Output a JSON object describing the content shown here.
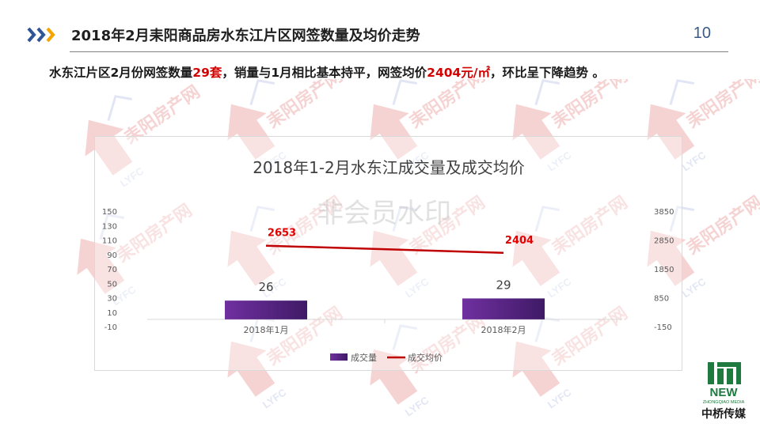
{
  "header": {
    "title": "2018年2月耒阳商品房水东江片区网签数量及均价走势",
    "page_number": "10"
  },
  "summary": {
    "part1": "水东江片区2月份网签数量",
    "count": "29套",
    "part2": "，销量与1月相比基本持平，网签均价",
    "price": "2404元/㎡",
    "part3": "，环比呈下降趋势 。"
  },
  "watermark": {
    "site": "耒阳房产网",
    "site_code": "LYFC",
    "center_text": "非会员水印"
  },
  "brand": {
    "mark": "NEW",
    "subtitle": "ZHONGQIAO MEDIA",
    "name": "中桥传媒"
  },
  "colors": {
    "accent_blue": "#2f5597",
    "accent_orange": "#f4a300",
    "bar": "#7030a0",
    "bar_dark": "#3f1a66",
    "line": "#c00000",
    "label_red": "#e00000"
  },
  "chart_data": {
    "type": "bar+line",
    "title": "2018年1-2月水东江成交量及成交均价",
    "categories": [
      "2018年1月",
      "2018年2月"
    ],
    "series": [
      {
        "name": "成交量",
        "type": "bar",
        "axis": "left",
        "values": [
          26,
          29
        ]
      },
      {
        "name": "成交均价",
        "type": "line",
        "axis": "right",
        "values": [
          2653,
          2404
        ]
      }
    ],
    "y_left": {
      "min": -10,
      "max": 150,
      "ticks": [
        -10,
        10,
        30,
        50,
        70,
        90,
        110,
        130,
        150
      ]
    },
    "y_right": {
      "min": -150,
      "max": 3850,
      "ticks": [
        -150,
        850,
        1850,
        2850,
        3850
      ]
    },
    "grid": false,
    "legend": "bottom"
  }
}
